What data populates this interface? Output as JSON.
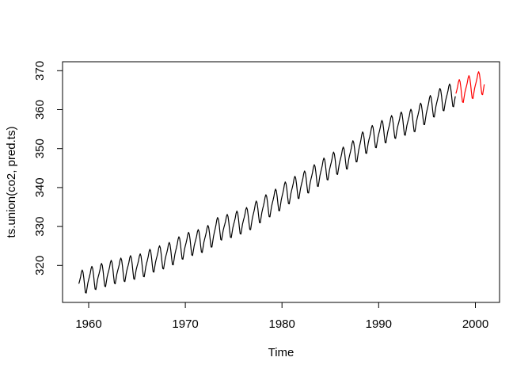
{
  "chart_data": {
    "type": "line",
    "title": "",
    "xlabel": "Time",
    "ylabel": "ts.union(co2, pred.ts)",
    "x_ticks": [
      1960,
      1970,
      1980,
      1990,
      2000
    ],
    "y_ticks": [
      320,
      330,
      340,
      350,
      360,
      370
    ],
    "xlim": [
      1957.3,
      2002.5
    ],
    "ylim": [
      310.5,
      372.3
    ],
    "grid": false,
    "legend": null,
    "frequency": 12,
    "seasonal_offsets": [
      -0.1,
      0.6,
      1.4,
      2.5,
      3.0,
      2.4,
      0.8,
      -1.3,
      -3.1,
      -3.3,
      -2.1,
      -0.9
    ],
    "series": [
      {
        "name": "co2 observed (black)",
        "color": "#000000",
        "start_year": 1959,
        "end_year": 1997,
        "annual_means": [
          315.97,
          316.91,
          317.64,
          318.45,
          318.99,
          319.62,
          320.04,
          321.37,
          322.18,
          323.05,
          324.62,
          325.68,
          326.32,
          327.46,
          329.68,
          330.19,
          331.12,
          332.03,
          333.84,
          335.41,
          336.84,
          338.76,
          340.12,
          341.48,
          343.15,
          344.87,
          346.35,
          347.61,
          349.31,
          351.69,
          353.2,
          354.45,
          355.7,
          356.54,
          357.21,
          358.96,
          360.97,
          362.74,
          363.76
        ]
      },
      {
        "name": "pred.ts forecast (red)",
        "color": "#ff0000",
        "start_year": 1998,
        "end_year": 2000,
        "annual_means": [
          364.9,
          365.9,
          366.9
        ]
      }
    ]
  }
}
